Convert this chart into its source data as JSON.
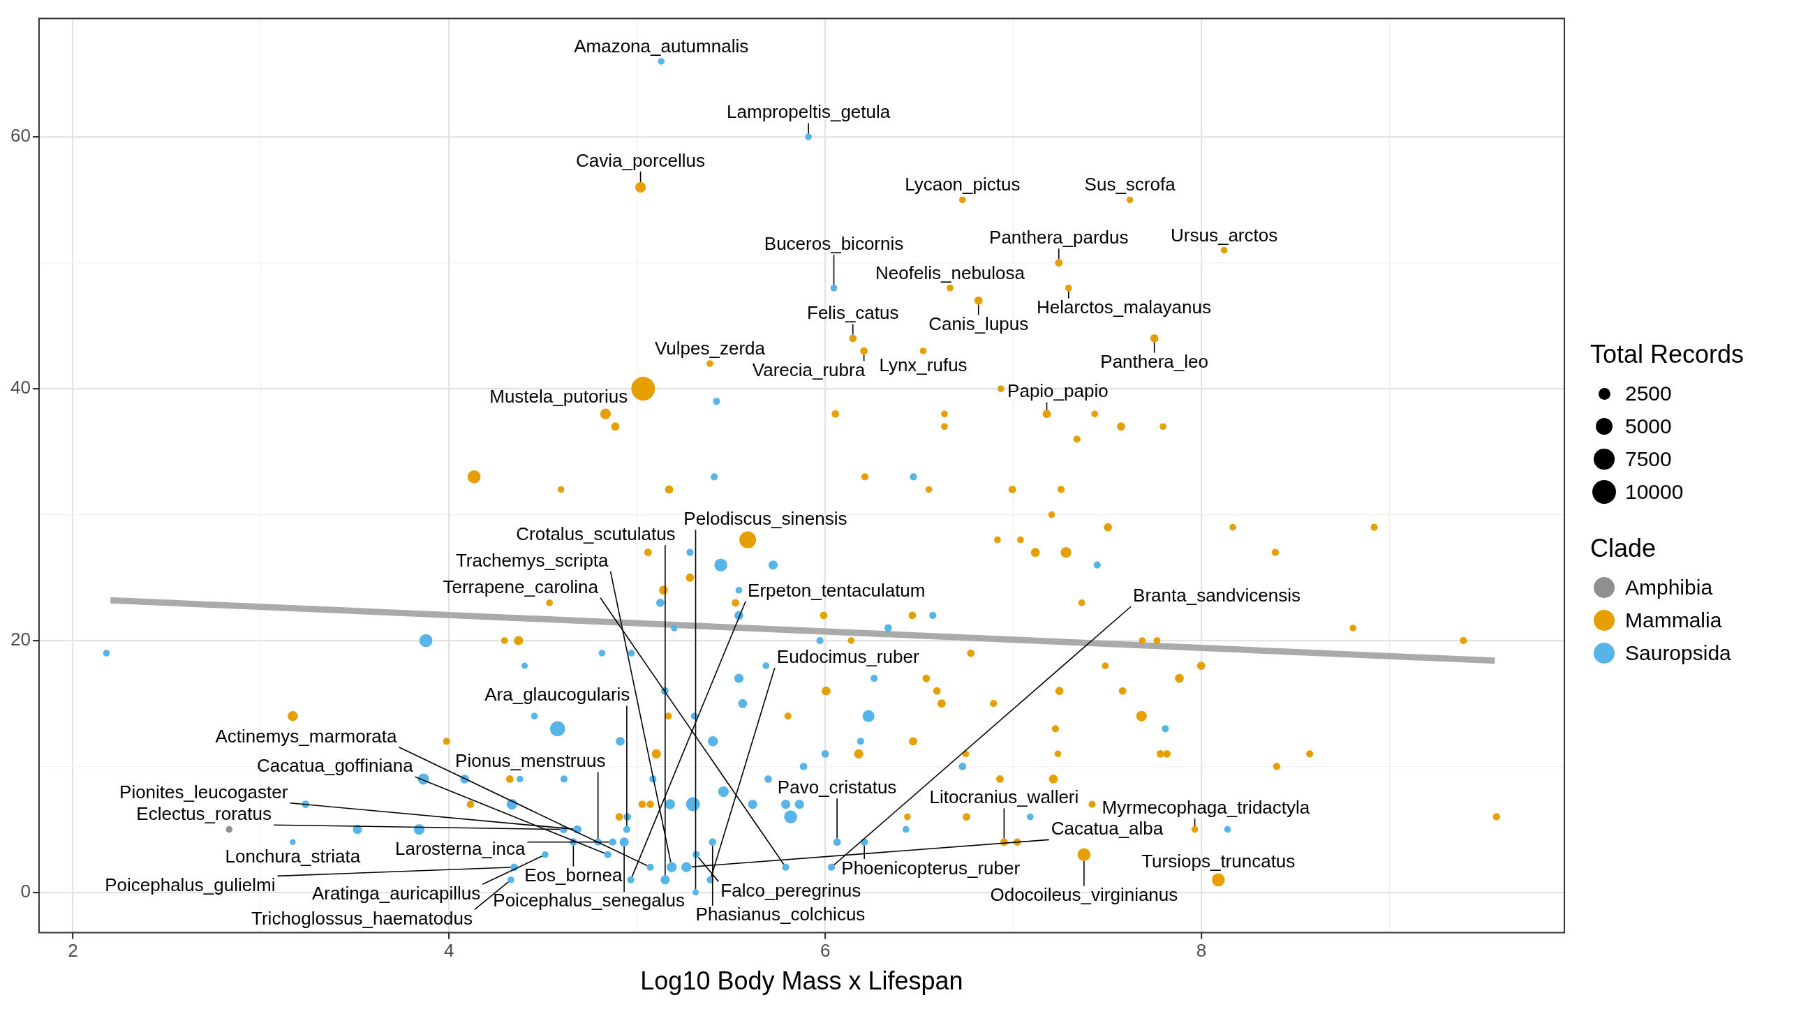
{
  "chart_data": {
    "type": "scatter",
    "xlabel": "Log10 Body Mass x Lifespan",
    "xlim": [
      1.82,
      9.93
    ],
    "ylim": [
      -3.2,
      69.4
    ],
    "xticks": [
      2,
      {
        "value": 3,
        "label": null
      },
      4,
      {
        "value": 5,
        "label": null
      },
      6,
      {
        "value": 7,
        "label": null
      },
      8,
      {
        "value": 9,
        "label": null
      }
    ],
    "yticks": [
      0,
      {
        "value": 10,
        "label": null
      },
      20,
      {
        "value": 30,
        "label": null
      },
      40,
      {
        "value": 50,
        "label": null
      },
      60
    ],
    "grid": true,
    "marker": "circle",
    "legend": "right",
    "legend_title": "Clade",
    "size_legend": [
      2500,
      5000,
      7500,
      10000
    ],
    "series": [
      {
        "name": "Amphibia",
        "color": "#8f8f8f",
        "x": [
          2.831
        ],
        "values": [
          5
        ],
        "sizes": [
          800
        ]
      },
      {
        "name": "Mammalia",
        "color": "#e69f00",
        "x": [
          5.018,
          6.73,
          7.62,
          7.242,
          8.121,
          6.664,
          7.294,
          6.815,
          6.147,
          7.75,
          6.206,
          6.521,
          5.387,
          5.032,
          6.934,
          4.832,
          6.054,
          6.634,
          7.178,
          7.433,
          4.884,
          6.634,
          7.573,
          7.796,
          7.338,
          6.211,
          4.133,
          4.595,
          5.17,
          6.551,
          6.995,
          7.254,
          7.204,
          5.588,
          6.916,
          7.038,
          7.117,
          7.28,
          8.393,
          5.058,
          7.503,
          8.167,
          8.919,
          5.281,
          5.14,
          4.534,
          5.523,
          7.364,
          5.992,
          6.463,
          8.806,
          6.138,
          4.295,
          4.369,
          7.686,
          7.764,
          9.393,
          6.774,
          7.489,
          7.999,
          6.537,
          7.883,
          6.005,
          6.594,
          7.245,
          7.581,
          6.619,
          6.895,
          3.169,
          5.166,
          5.802,
          7.682,
          7.224,
          3.987,
          6.467,
          5.102,
          6.178,
          6.747,
          7.237,
          7.782,
          7.817,
          8.576,
          8.4,
          4.323,
          6.929,
          7.213,
          4.114,
          5.027,
          5.07,
          7.419,
          4.905,
          6.437,
          6.751,
          9.569,
          6.951,
          7.021,
          7.965,
          7.376,
          8.09
        ],
        "values": [
          56,
          55,
          55,
          50,
          51,
          48,
          48,
          47,
          44,
          44,
          43,
          43,
          42,
          40,
          40,
          38,
          38,
          38,
          38,
          38,
          37,
          37,
          37,
          37,
          36,
          33,
          33,
          32,
          32,
          32,
          32,
          32,
          30,
          28,
          28,
          28,
          27,
          27,
          27,
          27,
          29,
          29,
          29,
          25,
          24,
          23,
          23,
          23,
          22,
          22,
          21,
          20,
          20,
          20,
          20,
          20,
          20,
          19,
          18,
          18,
          17,
          17,
          16,
          16,
          16,
          16,
          15,
          15,
          14,
          14,
          14,
          14,
          13,
          12,
          12,
          11,
          11,
          11,
          11,
          11,
          11,
          11,
          10,
          9,
          9,
          9,
          7,
          7,
          7,
          7,
          6,
          6,
          6,
          6,
          4,
          4,
          5,
          3,
          1
        ],
        "sizes": [
          2000,
          800,
          800,
          1000,
          800,
          800,
          800,
          1200,
          1000,
          1200,
          1000,
          800,
          800,
          10000,
          800,
          2000,
          1000,
          800,
          1200,
          800,
          1200,
          800,
          1200,
          800,
          900,
          900,
          3000,
          800,
          1200,
          800,
          1000,
          900,
          800,
          5000,
          800,
          800,
          1400,
          2000,
          900,
          1000,
          1200,
          800,
          900,
          1200,
          1400,
          800,
          1000,
          800,
          1000,
          1000,
          800,
          800,
          800,
          1500,
          800,
          800,
          900,
          1000,
          800,
          1200,
          1000,
          1400,
          1400,
          1000,
          1200,
          1000,
          1200,
          900,
          1800,
          900,
          900,
          2000,
          900,
          900,
          1200,
          1500,
          1500,
          800,
          800,
          1000,
          1000,
          900,
          900,
          1000,
          1000,
          1400,
          1000,
          1000,
          1000,
          900,
          1000,
          800,
          1000,
          900,
          1000,
          1000,
          800,
          3000,
          3000
        ]
      },
      {
        "name": "Sauropsida",
        "color": "#56b4e9",
        "x": [
          5.128,
          5.911,
          6.046,
          5.422,
          5.41,
          6.469,
          2.178,
          3.877,
          4.402,
          4.454,
          4.577,
          3.864,
          4.083,
          4.377,
          3.237,
          4.334,
          3.513,
          3.841,
          3.169,
          4.511,
          4.346,
          4.329,
          5.281,
          5.445,
          5.723,
          5.541,
          5.123,
          5.541,
          6.572,
          5.197,
          6.335,
          5.972,
          4.813,
          4.969,
          5.685,
          5.541,
          6.26,
          5.147,
          5.561,
          5.305,
          6.23,
          4.91,
          5.403,
          6.188,
          6.0,
          5.885,
          6.73,
          4.611,
          5.084,
          5.697,
          5.459,
          5.175,
          5.297,
          5.614,
          5.79,
          5.863,
          5.816,
          4.948,
          7.09,
          4.609,
          4.682,
          4.945,
          6.429,
          4.661,
          4.792,
          4.87,
          4.931,
          5.401,
          6.063,
          6.208,
          4.844,
          5.314,
          5.07,
          5.184,
          5.262,
          5.79,
          6.033,
          4.966,
          5.149,
          5.389,
          5.311,
          7.446,
          7.808,
          8.139
        ],
        "values": [
          66,
          60,
          48,
          39,
          33,
          33,
          19,
          20,
          18,
          14,
          13,
          9,
          9,
          9,
          7,
          7,
          5,
          5,
          4,
          3,
          2,
          1,
          27,
          26,
          26,
          24,
          23,
          22,
          22,
          21,
          21,
          20,
          19,
          19,
          18,
          17,
          17,
          16,
          15,
          14,
          14,
          12,
          12,
          12,
          11,
          10,
          10,
          9,
          9,
          9,
          8,
          7,
          7,
          7,
          7,
          7,
          6,
          6,
          6,
          5,
          5,
          5,
          5,
          4,
          4,
          4,
          4,
          4,
          4,
          4,
          3,
          3,
          2,
          2,
          2,
          2,
          2,
          1,
          1,
          1,
          0,
          26,
          13,
          5
        ],
        "sizes": [
          800,
          800,
          800,
          900,
          900,
          900,
          800,
          3000,
          700,
          800,
          4000,
          2200,
          1400,
          800,
          1000,
          2000,
          1500,
          2000,
          600,
          800,
          1000,
          800,
          900,
          3000,
          1500,
          800,
          1200,
          1400,
          900,
          800,
          1000,
          900,
          800,
          800,
          800,
          1500,
          900,
          1000,
          1400,
          900,
          2500,
          1400,
          1800,
          900,
          1000,
          1000,
          1000,
          900,
          900,
          1000,
          2000,
          1800,
          3500,
          1500,
          1500,
          1500,
          3000,
          1000,
          800,
          1000,
          1200,
          900,
          800,
          1000,
          900,
          900,
          1500,
          1000,
          1000,
          1000,
          900,
          900,
          900,
          1800,
          1800,
          900,
          900,
          900,
          1500,
          900,
          700,
          900,
          900,
          800
        ]
      },
      {
        "type": "line",
        "color": "#aaaaaa",
        "marker": "none",
        "x": [
          2.2,
          9.56
        ],
        "values": [
          23.2,
          18.4
        ]
      }
    ],
    "annotations": [
      "Total Records",
      {
        "text": "Amazona_autumnalis",
        "x": 5.128,
        "y": 66
      },
      {
        "text": "Lampropeltis_getula",
        "x": 5.911,
        "y": 60
      },
      {
        "text": "Cavia_porcellus",
        "x": 5.018,
        "y": 56
      },
      {
        "text": "Lycaon_pictus",
        "x": 6.73,
        "y": 55
      },
      {
        "text": "Sus_scrofa",
        "x": 7.62,
        "y": 55
      },
      {
        "text": "Ursus_arctos",
        "x": 8.121,
        "y": 51
      },
      {
        "text": "Panthera_pardus",
        "x": 7.242,
        "y": 50
      },
      {
        "text": "Neofelis_nebulosa",
        "x": 6.664,
        "y": 48
      },
      {
        "text": "Helarctos_malayanus",
        "x": 7.294,
        "y": 48
      },
      {
        "text": "Buceros_bicornis",
        "x": 6.046,
        "y": 48
      },
      {
        "text": "Canis_lupus",
        "x": 6.815,
        "y": 47
      },
      {
        "text": "Felis_catus",
        "x": 6.147,
        "y": 44
      },
      {
        "text": "Panthera_leo",
        "x": 7.75,
        "y": 44
      },
      {
        "text": "Lynx_rufus",
        "x": 6.521,
        "y": 43
      },
      {
        "text": "Varecia_rubra",
        "x": 6.206,
        "y": 43
      },
      {
        "text": "Vulpes_zerda",
        "x": 5.387,
        "y": 42
      },
      {
        "text": "Mustela_putorius",
        "x": 4.832,
        "y": 38
      },
      {
        "text": "Papio_papio",
        "x": 7.178,
        "y": 38
      },
      {
        "text": "Poicephalus_senegalus",
        "x": 4.931,
        "y": 4
      },
      {
        "text": "Pavo_cristatus",
        "x": 6.063,
        "y": 4
      },
      {
        "text": "Pionus_menstruus",
        "x": 4.792,
        "y": 4
      },
      {
        "text": "Larosterna_inca",
        "x": 4.87,
        "y": 4
      },
      {
        "text": "Ara_glaucogularis",
        "x": 4.945,
        "y": 5
      },
      {
        "text": "Myrmecophaga_tridactyla",
        "x": 7.965,
        "y": 5
      },
      {
        "text": "Litocranius_walleri",
        "x": 6.951,
        "y": 4
      },
      {
        "text": "Falco_peregrinus",
        "x": 5.314,
        "y": 3
      },
      {
        "text": "Lonchura_striata",
        "x": 3.169,
        "y": 4
      },
      {
        "text": "Eos_bornea",
        "x": 4.661,
        "y": 4
      },
      {
        "text": "Aratinga_auricapillus",
        "x": 4.511,
        "y": 3
      },
      {
        "text": "Cacatua_goffiniana",
        "x": 4.844,
        "y": 3
      },
      {
        "text": "Phasianus_colchicus",
        "x": 5.401,
        "y": 4
      },
      {
        "text": "Phoenicopterus_ruber",
        "x": 6.208,
        "y": 4
      },
      {
        "text": "Odocoileus_virginianus",
        "x": 7.376,
        "y": 3
      },
      {
        "text": "Pionites_leucogaster",
        "x": 4.682,
        "y": 5
      },
      {
        "text": "Poicephalus_gulielmi",
        "x": 4.346,
        "y": 2
      },
      {
        "text": "Erpeton_tentaculatum",
        "x": 4.966,
        "y": 1
      },
      {
        "text": "Actinemys_marmorata",
        "x": 5.07,
        "y": 2
      },
      {
        "text": "Eudocimus_ruber",
        "x": 5.389,
        "y": 1
      },
      {
        "text": "Terrapene_carolina",
        "x": 5.79,
        "y": 2
      },
      {
        "text": "Branta_sandvicensis",
        "x": 6.033,
        "y": 2
      },
      {
        "text": "Tursiops_truncatus",
        "x": 8.09,
        "y": 1
      },
      {
        "text": "Trichoglossus_haematodus",
        "x": 4.329,
        "y": 1
      },
      {
        "text": "Trachemys_scripta",
        "x": 5.184,
        "y": 2
      },
      {
        "text": "Eclectus_roratus",
        "x": 4.609,
        "y": 5
      },
      {
        "text": "Crotalus_scutulatus",
        "x": 5.149,
        "y": 1
      },
      {
        "text": "Pelodiscus_sinensis",
        "x": 5.311,
        "y": 0
      },
      {
        "text": "Cacatua_alba",
        "x": 5.262,
        "y": 2
      }
    ]
  }
}
